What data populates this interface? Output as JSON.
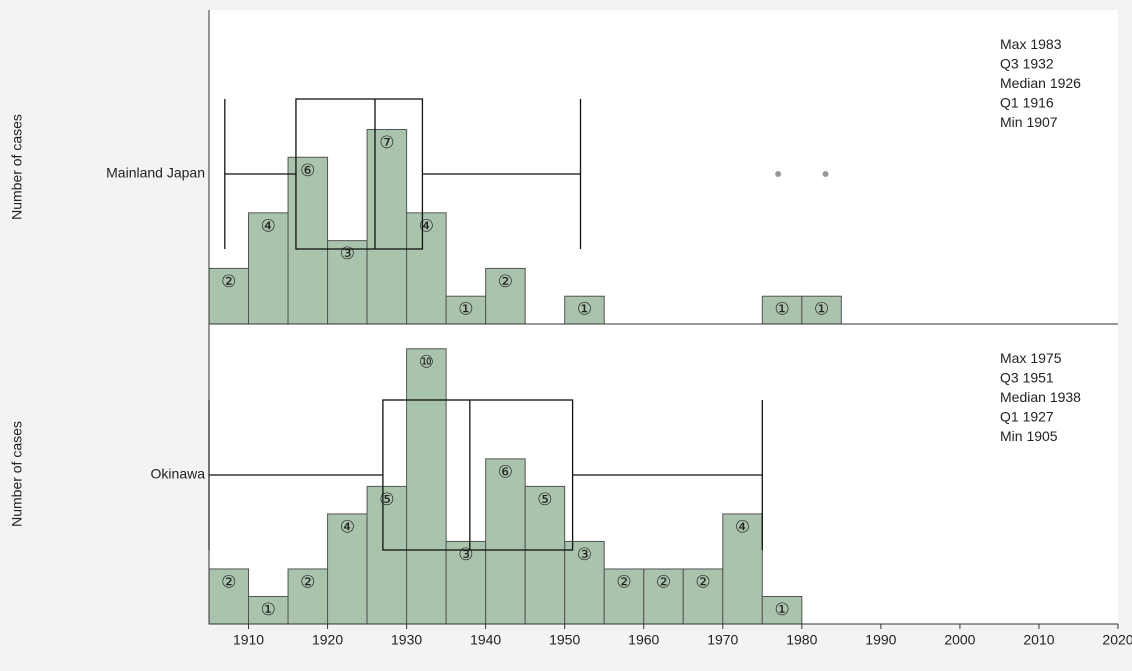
{
  "chart_data": [
    {
      "type": "histogram",
      "ylabel": "Number of cases",
      "category": "Mainland Japan",
      "bins": [
        1905,
        1910,
        1915,
        1920,
        1925,
        1930,
        1935,
        1940,
        1945,
        1950,
        1955,
        1960,
        1965,
        1970,
        1975,
        1980,
        1985
      ],
      "values": [
        2,
        4,
        6,
        3,
        7,
        4,
        1,
        2,
        0,
        1,
        0,
        0,
        0,
        0,
        1,
        1
      ],
      "value_labels": [
        "②",
        "④",
        "⑥",
        "③",
        "⑦",
        "④",
        "①",
        "②",
        null,
        "①",
        null,
        null,
        null,
        null,
        "①",
        "①"
      ],
      "color": "#a9c3ac",
      "xlim": [
        1905,
        2020
      ],
      "ylim": [
        0,
        11.3
      ],
      "box": {
        "stats": [
          {
            "label": "Max",
            "value": 1983
          },
          {
            "label": "Q3",
            "value": 1932
          },
          {
            "label": "Median",
            "value": 1926
          },
          {
            "label": "Q1",
            "value": 1916
          },
          {
            "label": "Min",
            "value": 1907
          }
        ],
        "upper_whisker": 1952,
        "outliers": [
          1977,
          1983
        ]
      }
    },
    {
      "type": "histogram",
      "ylabel": "Number of cases",
      "category": "Okinawa",
      "bins": [
        1905,
        1910,
        1915,
        1920,
        1925,
        1930,
        1935,
        1940,
        1945,
        1950,
        1955,
        1960,
        1965,
        1970,
        1975,
        1980
      ],
      "values": [
        2,
        1,
        2,
        4,
        5,
        10,
        3,
        6,
        5,
        3,
        2,
        2,
        2,
        4,
        1
      ],
      "value_labels": [
        "②",
        "①",
        "②",
        "④",
        "⑤",
        "⑩",
        "③",
        "⑥",
        "⑤",
        "③",
        "②",
        "②",
        "②",
        "④",
        "①"
      ],
      "color": "#a9c3ac",
      "xlim": [
        1905,
        2020
      ],
      "ylim": [
        0,
        10.9
      ],
      "xticks": [
        1910,
        1920,
        1930,
        1940,
        1950,
        1960,
        1970,
        1980,
        1990,
        2000,
        2010,
        2020
      ],
      "box": {
        "stats": [
          {
            "label": "Max",
            "value": 1975
          },
          {
            "label": "Q3",
            "value": 1951
          },
          {
            "label": "Median",
            "value": 1938
          },
          {
            "label": "Q1",
            "value": 1927
          },
          {
            "label": "Min",
            "value": 1905
          }
        ],
        "upper_whisker": 1975,
        "outliers": []
      }
    }
  ]
}
